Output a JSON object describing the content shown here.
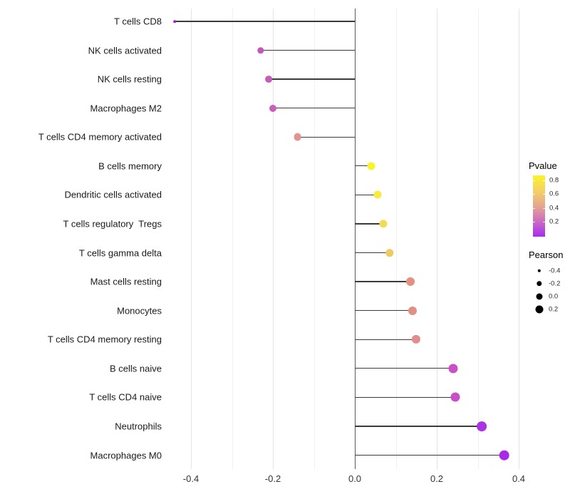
{
  "chart_data": {
    "type": "lollipop",
    "title": "",
    "xlabel": "",
    "ylabel": "",
    "orientation": "horizontal",
    "grid": "vertical only, light gray, zero line dark",
    "x_axis": {
      "ticks": [
        {
          "label": "-0.4",
          "value": -0.4
        },
        {
          "label": "-0.2",
          "value": -0.2
        },
        {
          "label": "0.0",
          "value": 0.0
        },
        {
          "label": "0.2",
          "value": 0.2
        },
        {
          "label": "0.4",
          "value": 0.4
        }
      ],
      "minor_gridlines": [
        -0.3,
        -0.1,
        0.1,
        0.3
      ],
      "range": [
        -0.48,
        0.42
      ]
    },
    "rows": [
      {
        "label": "T cells CD8",
        "pearson": -0.44,
        "color": "#9B21DE",
        "radius": 1.8
      },
      {
        "label": "NK cells activated",
        "pearson": -0.23,
        "color": "#C456BC",
        "radius": 4.7
      },
      {
        "label": "NK cells resting",
        "pearson": -0.21,
        "color": "#C55CB7",
        "radius": 4.9
      },
      {
        "label": "Macrophages M2",
        "pearson": -0.2,
        "color": "#C660BA",
        "radius": 5.0
      },
      {
        "label": "T cells CD4 memory activated",
        "pearson": -0.14,
        "color": "#E4928C",
        "radius": 5.4
      },
      {
        "label": "B cells memory",
        "pearson": 0.04,
        "color": "#F8F32A",
        "radius": 5.5
      },
      {
        "label": "Dendritic cells activated",
        "pearson": 0.055,
        "color": "#F7EB3D",
        "radius": 5.5
      },
      {
        "label": "T cells regulatory  Tregs",
        "pearson": 0.07,
        "color": "#F4DB52",
        "radius": 5.6
      },
      {
        "label": "T cells gamma delta",
        "pearson": 0.085,
        "color": "#EFC961",
        "radius": 5.7
      },
      {
        "label": "Mast cells resting",
        "pearson": 0.135,
        "color": "#E49080",
        "radius": 6.0
      },
      {
        "label": "Monocytes",
        "pearson": 0.14,
        "color": "#E38E85",
        "radius": 6.0
      },
      {
        "label": "T cells CD4 memory resting",
        "pearson": 0.15,
        "color": "#E18C8E",
        "radius": 6.1
      },
      {
        "label": "B cells naive",
        "pearson": 0.24,
        "color": "#C950C8",
        "radius": 6.5
      },
      {
        "label": "T cells CD4 naive",
        "pearson": 0.245,
        "color": "#C84FCA",
        "radius": 6.5
      },
      {
        "label": "Neutrophils",
        "pearson": 0.31,
        "color": "#AB33E3",
        "radius": 6.9
      },
      {
        "label": "Macrophages M0",
        "pearson": 0.365,
        "color": "#A929E9",
        "radius": 7.3
      }
    ],
    "legend_position": "right"
  },
  "legends": {
    "pvalue": {
      "title": "Pvalue",
      "ticks": [
        {
          "label": "0.8"
        },
        {
          "label": "0.6"
        },
        {
          "label": "0.4"
        },
        {
          "label": "0.2"
        }
      ],
      "gradient_stops": [
        "#FBF32B",
        "#F4D167",
        "#E5A68F",
        "#CB6CC3",
        "#A72CEC"
      ]
    },
    "pearson": {
      "title": "Pearson",
      "items": [
        {
          "label": "-0.4",
          "r": 2.2
        },
        {
          "label": "-0.2",
          "r": 3.7
        },
        {
          "label": "0.0",
          "r": 4.5
        },
        {
          "label": "0.2",
          "r": 5.5
        }
      ]
    }
  }
}
